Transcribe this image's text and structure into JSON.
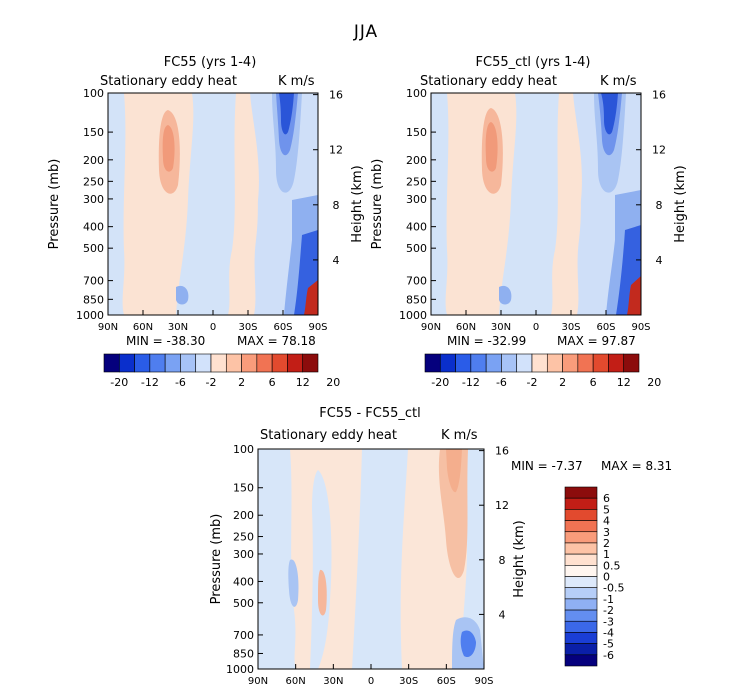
{
  "figure": {
    "title": "JJA"
  },
  "chart_data": [
    {
      "type": "contour",
      "title": "FC55 (yrs 1-4)",
      "left_label": "Stationary eddy heat",
      "right_label": "K m/s",
      "ylabel": "Pressure (mb)",
      "ylabel_right": "Height (km)",
      "x_ticks": [
        "90N",
        "60N",
        "30N",
        "0",
        "30S",
        "60S",
        "90S"
      ],
      "y_ticks": [
        "100",
        "150",
        "200",
        "250",
        "300",
        "400",
        "500",
        "700",
        "850",
        "1000"
      ],
      "y_ticks_right": [
        "16",
        "12",
        "8",
        "4"
      ],
      "min_label": "MIN = -38.30",
      "max_label": "MAX = 78.18",
      "colorbar_labels": [
        "-20",
        "-12",
        "-6",
        "-2",
        "2",
        "6",
        "12",
        "20"
      ],
      "colorbar_colors": [
        "#05007d",
        "#0a2fcc",
        "#2a5ce8",
        "#4f7eef",
        "#7aa2f3",
        "#a7c3f7",
        "#d2e2fb",
        "#ffe1d0",
        "#fdc3a6",
        "#f99c7b",
        "#f17353",
        "#e24a2e",
        "#c21e16",
        "#8c0c0c"
      ]
    },
    {
      "type": "contour",
      "title": "FC55_ctl (yrs 1-4)",
      "left_label": "Stationary eddy heat",
      "right_label": "K m/s",
      "ylabel": "Pressure (mb)",
      "ylabel_right": "Height (km)",
      "x_ticks": [
        "90N",
        "60N",
        "30N",
        "0",
        "30S",
        "60S",
        "90S"
      ],
      "y_ticks": [
        "100",
        "150",
        "200",
        "250",
        "300",
        "400",
        "500",
        "700",
        "850",
        "1000"
      ],
      "y_ticks_right": [
        "16",
        "12",
        "8",
        "4"
      ],
      "min_label": "MIN = -32.99",
      "max_label": "MAX = 97.87",
      "colorbar_labels": [
        "-20",
        "-12",
        "-6",
        "-2",
        "2",
        "6",
        "12",
        "20"
      ],
      "colorbar_colors": [
        "#05007d",
        "#0a2fcc",
        "#2a5ce8",
        "#4f7eef",
        "#7aa2f3",
        "#a7c3f7",
        "#d2e2fb",
        "#ffe1d0",
        "#fdc3a6",
        "#f99c7b",
        "#f17353",
        "#e24a2e",
        "#c21e16",
        "#8c0c0c"
      ]
    },
    {
      "type": "contour",
      "title": "FC55 - FC55_ctl",
      "left_label": "Stationary eddy heat",
      "right_label": "K m/s",
      "ylabel": "Pressure (mb)",
      "ylabel_right": "Height (km)",
      "x_ticks": [
        "90N",
        "60N",
        "30N",
        "0",
        "30S",
        "60S",
        "90S"
      ],
      "y_ticks": [
        "100",
        "150",
        "200",
        "250",
        "300",
        "400",
        "500",
        "700",
        "850",
        "1000"
      ],
      "y_ticks_right": [
        "16",
        "12",
        "8",
        "4"
      ],
      "min_label": "MIN = -7.37",
      "max_label": "MAX = 8.31",
      "colorbar_labels": [
        "6",
        "5",
        "4",
        "3",
        "2",
        "1",
        "0.5",
        "0",
        "-0.5",
        "-1",
        "-2",
        "-3",
        "-4",
        "-5",
        "-6"
      ],
      "colorbar_colors": [
        "#8c0c0c",
        "#c21e16",
        "#e24a2e",
        "#f17353",
        "#f99c7b",
        "#fdc3a6",
        "#ffe1d0",
        "#fff6f0",
        "#dde9fb",
        "#b6cef8",
        "#8fb0f4",
        "#638ef0",
        "#3b68e8",
        "#1a3ed5",
        "#0a1fa8",
        "#05007d"
      ]
    }
  ]
}
